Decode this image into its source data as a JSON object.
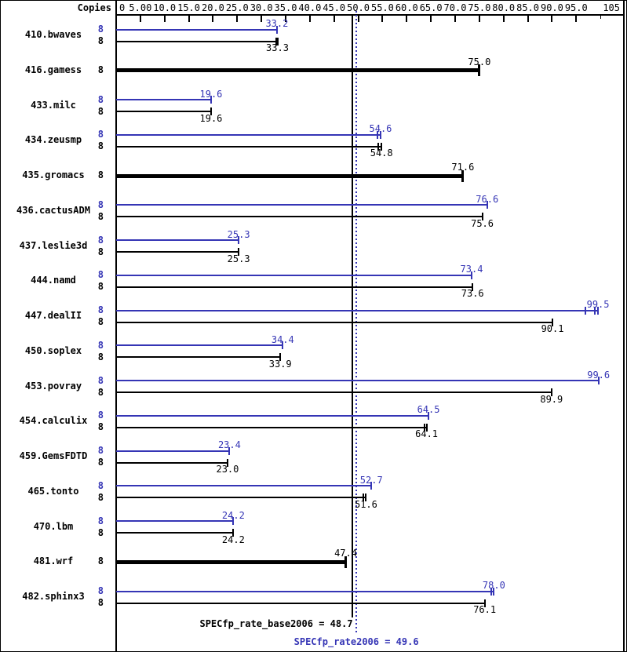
{
  "header": {
    "copies_label": "Copies"
  },
  "colors": {
    "peak": "#3535b5",
    "base": "#000000",
    "background": "#ffffff"
  },
  "footer": {
    "base_label": "SPECfp_rate_base2006 = 48.7",
    "peak_label": "SPECfp_rate2006 = 49.6"
  },
  "chart_data": {
    "type": "bar",
    "orientation": "horizontal",
    "xlabel": "",
    "ylabel": "",
    "legend": "none",
    "axis": {
      "min": 0,
      "max": 105,
      "minor_tick": 100,
      "tick_labels": [
        {
          "value": 0,
          "label": "0"
        },
        {
          "value": 5,
          "label": "5.00"
        },
        {
          "value": 10,
          "label": "10.0"
        },
        {
          "value": 15,
          "label": "15.0"
        },
        {
          "value": 20,
          "label": "20.0"
        },
        {
          "value": 25,
          "label": "25.0"
        },
        {
          "value": 30,
          "label": "30.0"
        },
        {
          "value": 35,
          "label": "35.0"
        },
        {
          "value": 40,
          "label": "40.0"
        },
        {
          "value": 45,
          "label": "45.0"
        },
        {
          "value": 50,
          "label": "50.0"
        },
        {
          "value": 55,
          "label": "55.0"
        },
        {
          "value": 60,
          "label": "60.0"
        },
        {
          "value": 65,
          "label": "65.0"
        },
        {
          "value": 70,
          "label": "70.0"
        },
        {
          "value": 75,
          "label": "75.0"
        },
        {
          "value": 80,
          "label": "80.0"
        },
        {
          "value": 85,
          "label": "85.0"
        },
        {
          "value": 90,
          "label": "90.0"
        },
        {
          "value": 95,
          "label": "95.0"
        },
        {
          "value": 105,
          "label": "105"
        }
      ]
    },
    "means": {
      "base": {
        "value": 48.7,
        "label": "SPECfp_rate_base2006 = 48.7"
      },
      "peak": {
        "value": 49.6,
        "label": "SPECfp_rate2006 = 49.6"
      }
    },
    "benchmarks": [
      {
        "name": "410.bwaves",
        "copies": 8,
        "peak": 33.2,
        "base": 33.3,
        "base_run_ticks": [
          33.0
        ]
      },
      {
        "name": "416.gamess",
        "copies": 8,
        "base": 75.0,
        "single": true
      },
      {
        "name": "433.milc",
        "copies": 8,
        "peak": 19.6,
        "base": 19.6
      },
      {
        "name": "434.zeusmp",
        "copies": 8,
        "peak": 54.6,
        "base": 54.8,
        "peak_run_ticks": [
          53.9
        ],
        "base_run_ticks": [
          54.1
        ]
      },
      {
        "name": "435.gromacs",
        "copies": 8,
        "base": 71.6,
        "single": true
      },
      {
        "name": "436.cactusADM",
        "copies": 8,
        "peak": 76.6,
        "base": 75.6
      },
      {
        "name": "437.leslie3d",
        "copies": 8,
        "peak": 25.3,
        "base": 25.3
      },
      {
        "name": "444.namd",
        "copies": 8,
        "peak": 73.4,
        "base": 73.6
      },
      {
        "name": "447.dealII",
        "copies": 8,
        "peak": 99.5,
        "base": 90.1,
        "peak_run_ticks": [
          96.9,
          98.9
        ]
      },
      {
        "name": "450.soplex",
        "copies": 8,
        "peak": 34.4,
        "base": 33.9
      },
      {
        "name": "453.povray",
        "copies": 8,
        "peak": 99.6,
        "base": 89.9
      },
      {
        "name": "454.calculix",
        "copies": 8,
        "peak": 64.5,
        "base": 64.1,
        "base_run_ticks": [
          63.6
        ]
      },
      {
        "name": "459.GemsFDTD",
        "copies": 8,
        "peak": 23.4,
        "base": 23.0
      },
      {
        "name": "465.tonto",
        "copies": 8,
        "peak": 52.7,
        "base": 51.6,
        "base_run_ticks": [
          51.0
        ]
      },
      {
        "name": "470.lbm",
        "copies": 8,
        "peak": 24.2,
        "base": 24.2
      },
      {
        "name": "481.wrf",
        "copies": 8,
        "base": 47.4,
        "single": true
      },
      {
        "name": "482.sphinx3",
        "copies": 8,
        "peak": 78.0,
        "base": 76.1,
        "peak_run_ticks": [
          77.4
        ]
      }
    ]
  }
}
